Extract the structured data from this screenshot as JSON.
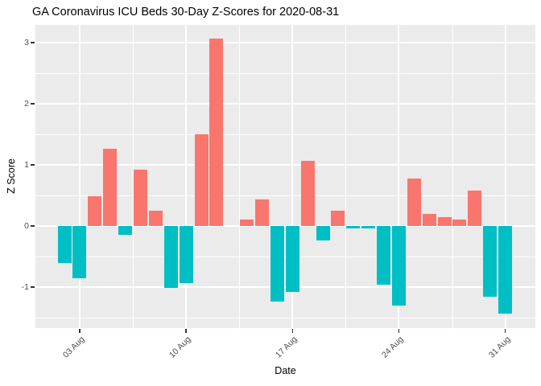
{
  "chart_data": {
    "type": "bar",
    "title": "GA Coronavirus ICU Beds 30-Day Z-Scores for 2020-08-31",
    "xlabel": "Date",
    "ylabel": "Z Score",
    "x": [
      "2020-08-02",
      "2020-08-03",
      "2020-08-04",
      "2020-08-05",
      "2020-08-06",
      "2020-08-07",
      "2020-08-08",
      "2020-08-09",
      "2020-08-10",
      "2020-08-11",
      "2020-08-12",
      "2020-08-13",
      "2020-08-14",
      "2020-08-15",
      "2020-08-16",
      "2020-08-17",
      "2020-08-18",
      "2020-08-19",
      "2020-08-20",
      "2020-08-21",
      "2020-08-22",
      "2020-08-23",
      "2020-08-24",
      "2020-08-25",
      "2020-08-26",
      "2020-08-27",
      "2020-08-28",
      "2020-08-29",
      "2020-08-30",
      "2020-08-31"
    ],
    "values": [
      -0.61,
      -0.86,
      0.49,
      1.26,
      -0.14,
      0.92,
      0.25,
      -1.01,
      -0.93,
      1.5,
      3.07,
      0.0,
      0.11,
      0.44,
      -1.24,
      -1.08,
      1.07,
      -0.24,
      0.25,
      -0.04,
      -0.04,
      -0.96,
      -1.3,
      0.78,
      0.2,
      0.15,
      0.1,
      0.58,
      -1.16,
      -1.43
    ],
    "y_ticks": [
      3,
      2,
      1,
      0,
      -1
    ],
    "y_minor_ticks": [
      2.5,
      1.5,
      0.5,
      -0.5,
      -1.5
    ],
    "x_tick_labels": [
      "03 Aug",
      "10 Aug",
      "17 Aug",
      "24 Aug",
      "31 Aug"
    ],
    "x_tick_days": [
      "2020-08-03",
      "2020-08-10",
      "2020-08-17",
      "2020-08-24",
      "2020-08-31"
    ],
    "ylim": [
      -1.67,
      3.29
    ],
    "grid": true,
    "legend": "none",
    "colors": {
      "positive_bar": "#F8766D",
      "negative_bar": "#00BFC4",
      "panel_background": "#EBEBEB",
      "gridline": "#FFFFFF",
      "tick_label": "#4D4D4D",
      "title_text": "#000000"
    }
  }
}
